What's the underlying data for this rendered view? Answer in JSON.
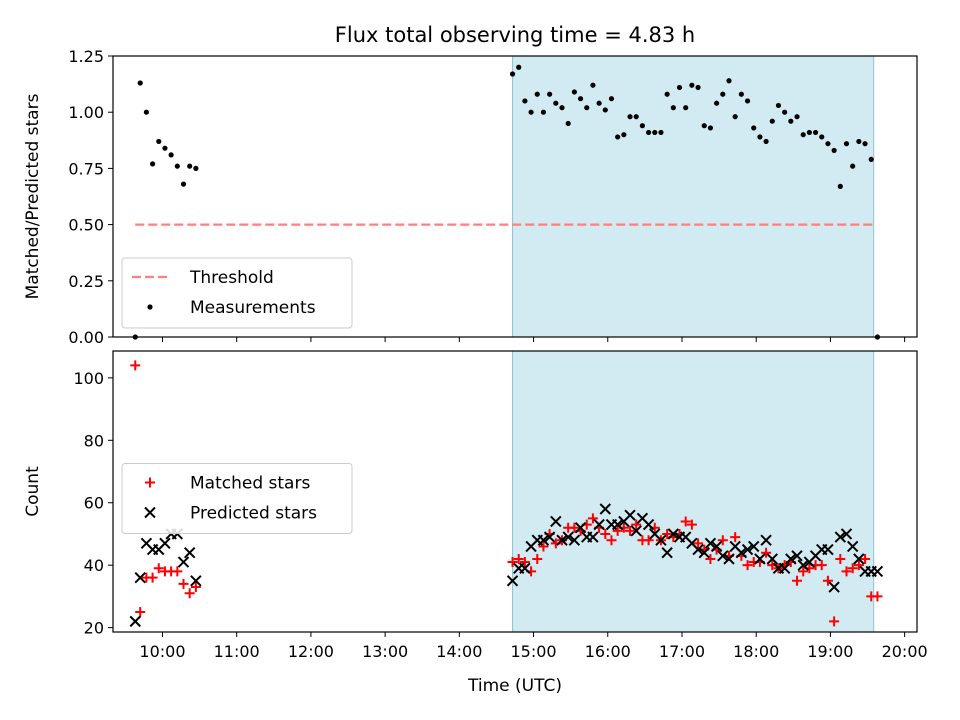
{
  "chart_data": {
    "title": "Flux total observing time = 4.83 h",
    "type": "scatter",
    "xlabel": "Time (UTC)",
    "xlim": [
      "09:20",
      "20:10"
    ],
    "xticks": [
      "10:00",
      "11:00",
      "12:00",
      "13:00",
      "14:00",
      "15:00",
      "16:00",
      "17:00",
      "18:00",
      "19:00",
      "20:00"
    ],
    "shaded_span": {
      "start": "14:43",
      "end": "19:35",
      "color": "#add8e6"
    },
    "panels": [
      {
        "name": "ratio",
        "ylabel": "Matched/Predicted stars",
        "ylim": [
          0,
          1.25
        ],
        "yticks": [
          "0.00",
          "0.25",
          "0.50",
          "0.75",
          "1.00",
          "1.25"
        ],
        "legend_position": "lower-left",
        "series": [
          {
            "name": "Threshold",
            "type": "line",
            "style": "dashed",
            "color": "#ff7f7f",
            "x": [
              "09:38",
              "19:37"
            ],
            "y": [
              0.5,
              0.5
            ]
          },
          {
            "name": "Measurements",
            "type": "scatter",
            "marker": "dot",
            "color": "#000000",
            "x": [
              "09:38",
              "09:42",
              "09:47",
              "09:52",
              "09:57",
              "10:02",
              "10:07",
              "10:12",
              "10:17",
              "10:22",
              "10:27",
              "14:43",
              "14:48",
              "14:53",
              "14:58",
              "15:03",
              "15:08",
              "15:13",
              "15:18",
              "15:23",
              "15:28",
              "15:33",
              "15:38",
              "15:43",
              "15:48",
              "15:53",
              "15:58",
              "16:03",
              "16:08",
              "16:13",
              "16:18",
              "16:23",
              "16:28",
              "16:33",
              "16:38",
              "16:43",
              "16:48",
              "16:53",
              "16:58",
              "17:03",
              "17:08",
              "17:13",
              "17:18",
              "17:23",
              "17:28",
              "17:33",
              "17:38",
              "17:43",
              "17:48",
              "17:53",
              "17:58",
              "18:03",
              "18:08",
              "18:13",
              "18:18",
              "18:23",
              "18:28",
              "18:33",
              "18:38",
              "18:43",
              "18:48",
              "18:53",
              "18:58",
              "19:03",
              "19:08",
              "19:13",
              "19:18",
              "19:23",
              "19:28",
              "19:33",
              "19:38"
            ],
            "y": [
              0.0,
              1.13,
              1.0,
              0.77,
              0.87,
              0.84,
              0.81,
              0.76,
              0.68,
              0.76,
              0.75,
              1.17,
              1.2,
              1.05,
              1.0,
              1.08,
              1.0,
              1.08,
              1.04,
              1.02,
              0.95,
              1.09,
              1.06,
              1.02,
              1.12,
              1.04,
              1.01,
              1.06,
              0.89,
              0.9,
              0.98,
              0.98,
              0.94,
              0.91,
              0.91,
              0.91,
              1.08,
              1.02,
              1.11,
              1.02,
              1.12,
              1.11,
              0.94,
              0.93,
              1.04,
              1.08,
              1.14,
              0.98,
              1.08,
              1.05,
              0.93,
              0.89,
              0.87,
              0.96,
              1.03,
              1.0,
              0.96,
              0.98,
              0.9,
              0.91,
              0.91,
              0.89,
              0.86,
              0.83,
              0.67,
              0.86,
              0.76,
              0.87,
              0.86,
              0.79,
              0.0
            ]
          }
        ]
      },
      {
        "name": "counts",
        "ylabel": "Count",
        "ylim": [
          18.6,
          108.6
        ],
        "yticks": [
          "20",
          "40",
          "60",
          "80",
          "100"
        ],
        "legend_position": "center-left",
        "series": [
          {
            "name": "Matched stars",
            "type": "scatter",
            "marker": "plus",
            "color": "#ff0000",
            "x": [
              "09:38",
              "09:42",
              "09:47",
              "09:52",
              "09:57",
              "10:02",
              "10:07",
              "10:12",
              "10:17",
              "10:22",
              "10:27",
              "14:43",
              "14:48",
              "14:53",
              "14:58",
              "15:03",
              "15:08",
              "15:13",
              "15:18",
              "15:23",
              "15:28",
              "15:33",
              "15:38",
              "15:43",
              "15:48",
              "15:53",
              "15:58",
              "16:03",
              "16:08",
              "16:13",
              "16:18",
              "16:23",
              "16:28",
              "16:33",
              "16:38",
              "16:43",
              "16:48",
              "16:53",
              "16:58",
              "17:03",
              "17:08",
              "17:13",
              "17:18",
              "17:23",
              "17:28",
              "17:33",
              "17:38",
              "17:43",
              "17:48",
              "17:53",
              "17:58",
              "18:03",
              "18:08",
              "18:13",
              "18:18",
              "18:23",
              "18:28",
              "18:33",
              "18:38",
              "18:43",
              "18:48",
              "18:53",
              "18:58",
              "19:03",
              "19:08",
              "19:13",
              "19:18",
              "19:23",
              "19:28",
              "19:33",
              "19:38"
            ],
            "y": [
              104,
              25,
              36,
              36,
              39,
              38,
              38,
              38,
              34,
              31,
              33,
              41,
              42,
              41,
              38,
              42,
              46,
              50,
              47,
              48,
              52,
              52,
              51,
              53,
              55,
              52,
              50,
              48,
              51,
              52,
              51,
              53,
              48,
              48,
              52,
              48,
              50,
              49,
              50,
              54,
              53,
              47,
              45,
              42,
              45,
              48,
              43,
              49,
              43,
              40,
              41,
              41,
              44,
              40,
              39,
              40,
              41,
              35,
              38,
              39,
              40,
              40,
              35,
              22,
              42,
              38,
              39,
              40,
              42,
              30,
              30
            ]
          },
          {
            "name": "Predicted stars",
            "type": "scatter",
            "marker": "x",
            "color": "#000000",
            "x": [
              "09:38",
              "09:42",
              "09:47",
              "09:52",
              "09:57",
              "10:02",
              "10:07",
              "10:12",
              "10:17",
              "10:22",
              "10:27",
              "14:43",
              "14:48",
              "14:53",
              "14:58",
              "15:03",
              "15:08",
              "15:13",
              "15:18",
              "15:23",
              "15:28",
              "15:33",
              "15:38",
              "15:43",
              "15:48",
              "15:53",
              "15:58",
              "16:03",
              "16:08",
              "16:13",
              "16:18",
              "16:23",
              "16:28",
              "16:33",
              "16:38",
              "16:43",
              "16:48",
              "16:53",
              "16:58",
              "17:03",
              "17:08",
              "17:13",
              "17:18",
              "17:23",
              "17:28",
              "17:33",
              "17:38",
              "17:43",
              "17:48",
              "17:53",
              "17:58",
              "18:03",
              "18:08",
              "18:13",
              "18:18",
              "18:23",
              "18:28",
              "18:33",
              "18:38",
              "18:43",
              "18:48",
              "18:53",
              "18:58",
              "19:03",
              "19:08",
              "19:13",
              "19:18",
              "19:23",
              "19:28",
              "19:33",
              "19:38"
            ],
            "y": [
              22,
              36,
              47,
              45,
              45,
              47,
              50,
              50,
              41,
              44,
              35,
              35,
              39,
              39,
              46,
              48,
              48,
              49,
              54,
              48,
              49,
              48,
              52,
              49,
              49,
              53,
              58,
              53,
              53,
              54,
              56,
              51,
              55,
              53,
              50,
              48,
              44,
              50,
              49,
              49,
              47,
              45,
              44,
              47,
              46,
              43,
              42,
              46,
              44,
              45,
              46,
              42,
              48,
              42,
              39,
              39,
              42,
              43,
              40,
              41,
              43,
              45,
              45,
              33,
              49,
              50,
              46,
              42,
              38,
              38,
              38
            ]
          }
        ]
      }
    ]
  }
}
